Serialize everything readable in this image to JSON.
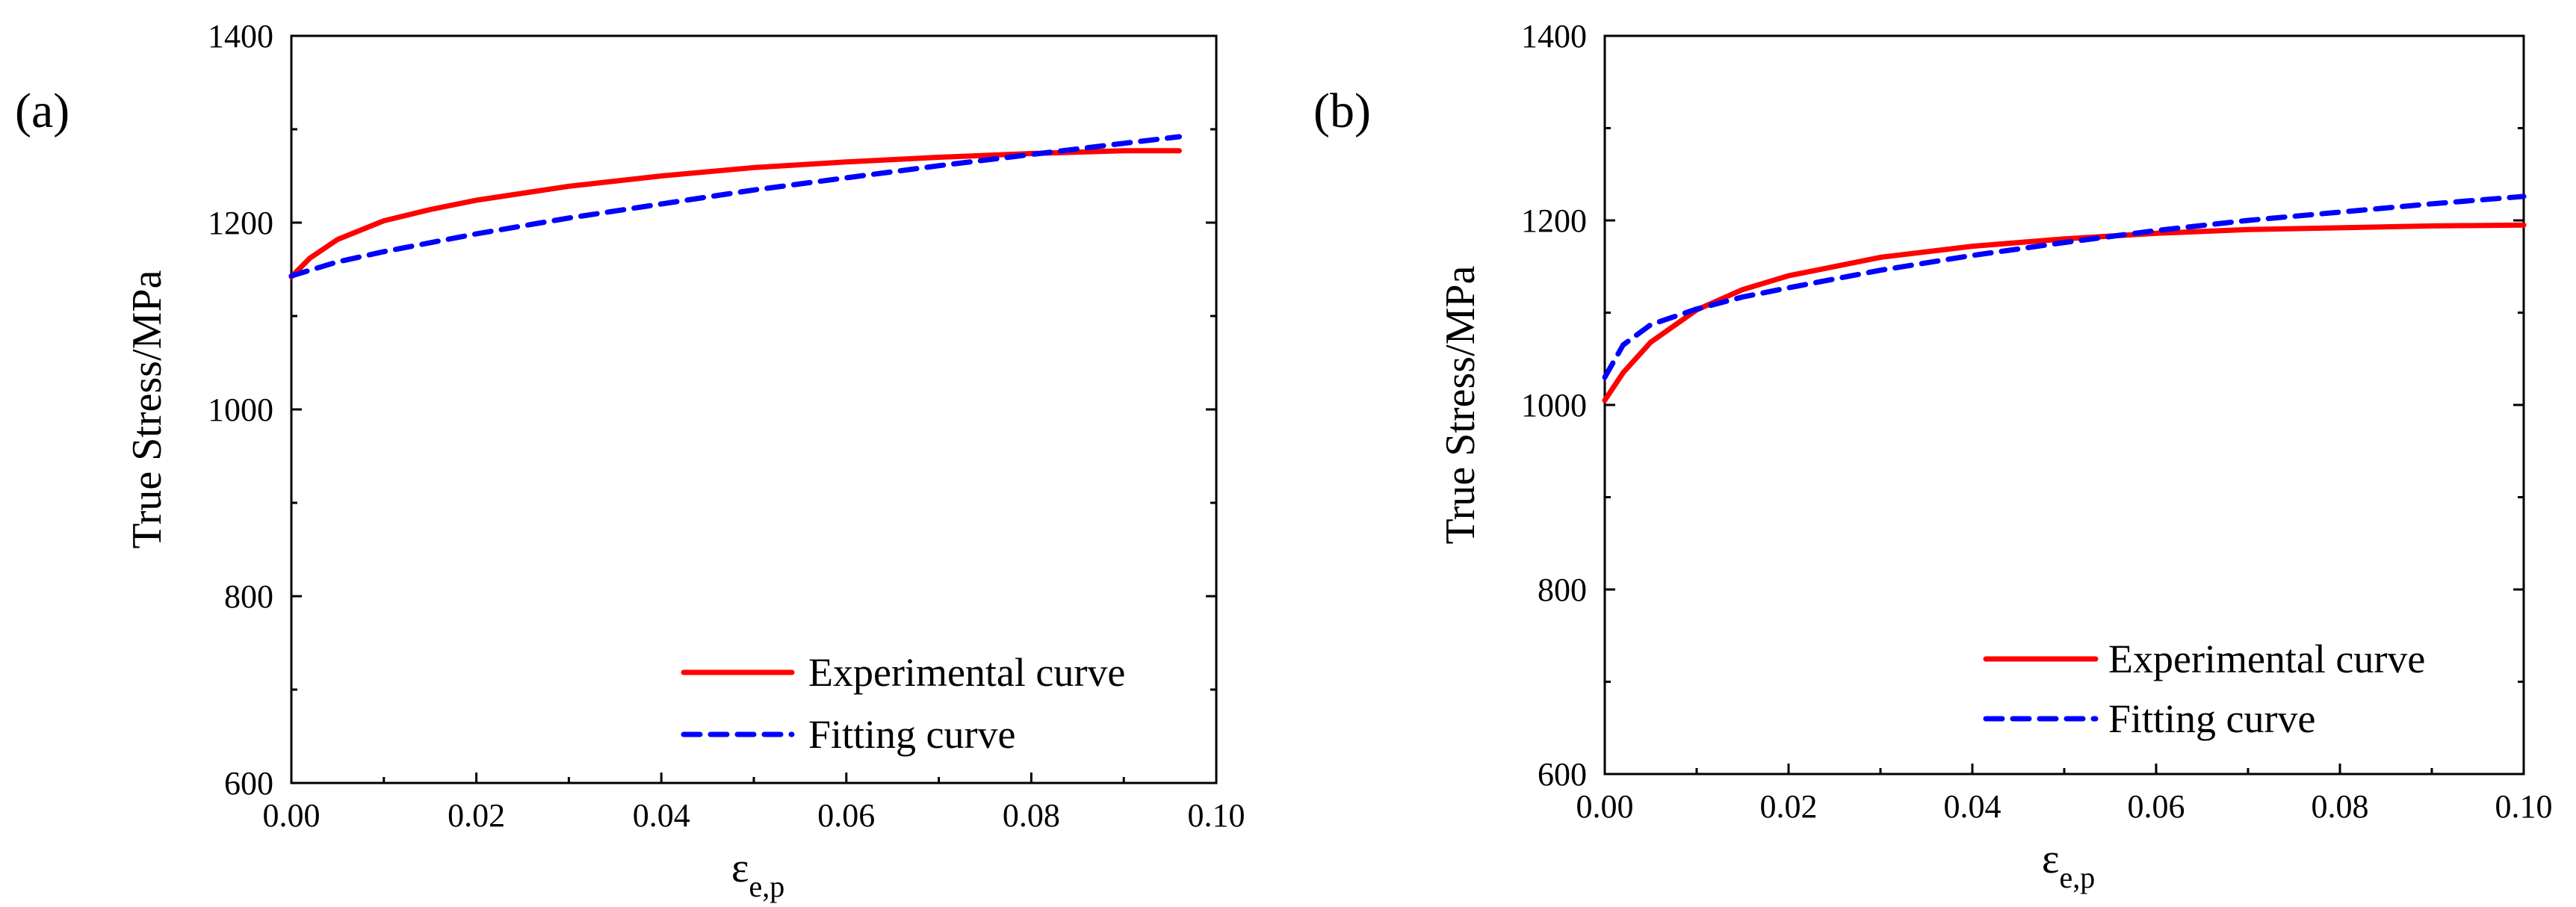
{
  "colors": {
    "experimental": "#ff0000",
    "fitting": "#0000ff",
    "axis": "#000000"
  },
  "chart_data": [
    {
      "panel_label": "(a)",
      "type": "line",
      "xlabel_main": "ε",
      "xlabel_sub": "e,p",
      "ylabel": "True Stress/MPa",
      "xlim": [
        0.0,
        0.1
      ],
      "ylim": [
        600,
        1400
      ],
      "x_ticks": [
        "0.00",
        "0.02",
        "0.04",
        "0.06",
        "0.08",
        "0.10"
      ],
      "y_ticks": [
        "600",
        "800",
        "1000",
        "1200",
        "1400"
      ],
      "legend_position": "bottom-right",
      "series": [
        {
          "name": "Experimental curve",
          "style": "solid",
          "color": "#ff0000",
          "x": [
            0.0,
            0.002,
            0.005,
            0.01,
            0.015,
            0.02,
            0.03,
            0.04,
            0.05,
            0.06,
            0.07,
            0.08,
            0.09,
            0.096
          ],
          "y": [
            1142,
            1162,
            1182,
            1202,
            1214,
            1224,
            1239,
            1250,
            1259,
            1265,
            1270,
            1274,
            1277,
            1277
          ]
        },
        {
          "name": "Fitting curve",
          "style": "dashed",
          "color": "#0000ff",
          "x": [
            0.0,
            0.005,
            0.01,
            0.02,
            0.03,
            0.04,
            0.05,
            0.06,
            0.07,
            0.08,
            0.09,
            0.096
          ],
          "y": [
            1143,
            1158,
            1169,
            1188,
            1205,
            1220,
            1235,
            1248,
            1261,
            1273,
            1285,
            1292
          ]
        }
      ]
    },
    {
      "panel_label": "(b)",
      "type": "line",
      "xlabel_main": "ε",
      "xlabel_sub": "e,p",
      "ylabel": "True Stress/MPa",
      "xlim": [
        0.0,
        0.1
      ],
      "ylim": [
        600,
        1400
      ],
      "x_ticks": [
        "0.00",
        "0.02",
        "0.04",
        "0.06",
        "0.08",
        "0.10"
      ],
      "y_ticks": [
        "600",
        "800",
        "1000",
        "1200",
        "1400"
      ],
      "legend_position": "bottom-right",
      "series": [
        {
          "name": "Experimental curve",
          "style": "solid",
          "color": "#ff0000",
          "x": [
            0.0,
            0.002,
            0.005,
            0.01,
            0.015,
            0.02,
            0.03,
            0.04,
            0.05,
            0.06,
            0.07,
            0.08,
            0.09,
            0.1
          ],
          "y": [
            1005,
            1035,
            1068,
            1103,
            1125,
            1140,
            1160,
            1172,
            1180,
            1186,
            1190,
            1192,
            1194,
            1195
          ]
        },
        {
          "name": "Fitting curve",
          "style": "dashed",
          "color": "#0000ff",
          "x": [
            0.0,
            0.002,
            0.005,
            0.01,
            0.015,
            0.02,
            0.03,
            0.04,
            0.05,
            0.06,
            0.07,
            0.08,
            0.09,
            0.1
          ],
          "y": [
            1030,
            1065,
            1087,
            1104,
            1117,
            1127,
            1146,
            1162,
            1176,
            1189,
            1200,
            1209,
            1218,
            1226
          ]
        }
      ]
    }
  ]
}
